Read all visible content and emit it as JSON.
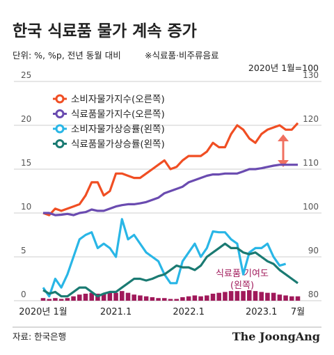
{
  "chart_data": {
    "type": "line",
    "title": "한국 식료품 물가 계속 증가",
    "subtitle": "단위: %, %p, 전년 동월 대비",
    "note": "※식료품·비주류음료",
    "y2_note": "2020년 1월=100",
    "source": "자료: 한국은행",
    "logo": "The JoongAng",
    "categories": [
      "2020년 1월",
      null,
      null,
      null,
      null,
      null,
      null,
      null,
      null,
      null,
      null,
      null,
      "2021.1",
      null,
      null,
      null,
      null,
      null,
      null,
      null,
      null,
      null,
      null,
      null,
      "2022.1",
      null,
      null,
      null,
      null,
      null,
      null,
      null,
      null,
      null,
      null,
      null,
      "2023.1",
      null,
      null,
      null,
      null,
      null,
      "7월"
    ],
    "ylim": [
      0,
      25
    ],
    "yticks": [
      0,
      5,
      10,
      15,
      20,
      25
    ],
    "y2lim": [
      80,
      130
    ],
    "y2ticks": [
      80,
      90,
      100,
      110,
      120,
      130
    ],
    "grid": true,
    "series": [
      {
        "name": "소비자물가지수(오른쪽)",
        "color": "#f04e23",
        "axis": "y2",
        "kind": "line",
        "values": [
          100,
          99.5,
          101,
          100.5,
          101,
          101.5,
          102,
          104,
          107,
          107,
          104,
          105,
          109,
          109,
          108.5,
          108,
          108,
          109,
          110,
          111,
          112,
          110,
          110.5,
          112,
          113,
          113,
          113,
          114,
          116,
          115,
          115,
          118,
          120,
          119,
          117,
          116,
          118,
          119,
          119.5,
          120,
          119,
          119,
          120.5
        ]
      },
      {
        "name": "식료품물가지수(오른쪽)",
        "color": "#6a4bb0",
        "axis": "y2",
        "kind": "line",
        "values": [
          100,
          100,
          99.5,
          99.6,
          99.8,
          99.5,
          100,
          100.2,
          100.8,
          100.5,
          100.5,
          101,
          101.5,
          101.8,
          102,
          102,
          102.2,
          102.5,
          103,
          103.5,
          104.5,
          105,
          105.5,
          106,
          107,
          107.5,
          108,
          108.5,
          108.8,
          108.8,
          109,
          109,
          109,
          109.5,
          110,
          110,
          110.2,
          110.5,
          110.8,
          111,
          111,
          111,
          111
        ]
      },
      {
        "name": "소비자물가상승률(왼쪽)",
        "color": "#29b6e6",
        "kind": "line",
        "values": [
          1.5,
          0.5,
          2.5,
          1.5,
          3,
          5,
          7,
          7.5,
          7.8,
          6,
          6.5,
          6,
          5,
          9.3,
          7,
          7.5,
          6.5,
          5.5,
          5,
          4.5,
          3,
          2,
          2,
          4.5,
          5.5,
          6.5,
          5,
          6,
          7.9,
          7.8,
          7.8,
          7,
          6.5,
          3,
          5.5,
          6,
          6,
          6.5,
          5,
          4,
          4.2,
          null,
          null
        ]
      },
      {
        "name": "식료품물가상승률(왼쪽)",
        "color": "#1a7a72",
        "kind": "line",
        "values": [
          1.2,
          0.8,
          1,
          0.5,
          0.5,
          1,
          1.5,
          1.5,
          1,
          0.5,
          0.8,
          1,
          1,
          1.5,
          2,
          2.5,
          2.5,
          2.3,
          2.5,
          2.8,
          3,
          3.5,
          4,
          3.8,
          3.8,
          3.5,
          4,
          5,
          5.5,
          6,
          6.5,
          6,
          6,
          5.5,
          5.3,
          5.5,
          5,
          4.5,
          4.2,
          3.5,
          3,
          2.5,
          2
        ]
      },
      {
        "name": "식료품 기여도",
        "name_note": "(왼쪽)",
        "color": "#a0195a",
        "kind": "bar",
        "values": [
          0.3,
          0.2,
          0.3,
          0.2,
          0.3,
          0.5,
          0.7,
          0.8,
          0.9,
          0.8,
          0.8,
          0.9,
          0.9,
          1.1,
          0.9,
          0.7,
          0.6,
          0.5,
          0.4,
          0.3,
          0.3,
          0.2,
          0.2,
          0.4,
          0.5,
          0.6,
          0.5,
          0.6,
          0.8,
          0.9,
          1,
          1.1,
          1.1,
          1.1,
          1.2,
          1.1,
          1,
          0.9,
          0.9,
          0.7,
          0.6,
          0.5,
          0.5
        ]
      }
    ]
  }
}
